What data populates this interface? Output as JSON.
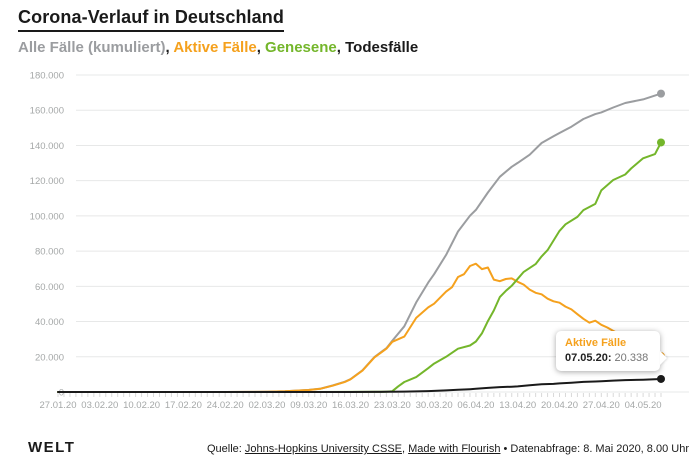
{
  "header": {
    "title": "Corona-Verlauf in Deutschland",
    "separator": ", ",
    "separator_color": "#1a1a1a",
    "legend": [
      {
        "label": "Alle Fälle (kumuliert)",
        "color": "#9b9da0"
      },
      {
        "label": "Aktive Fälle",
        "color": "#f5a11d"
      },
      {
        "label": "Genesene",
        "color": "#74b62b"
      },
      {
        "label": "Todesfälle",
        "color": "#1a1a1a"
      }
    ]
  },
  "tooltip": {
    "series": "Aktive Fälle",
    "color": "#f5a11d",
    "date_label": "07.05.20:",
    "value": "20.338"
  },
  "footer": {
    "brand": "WELT",
    "source_prefix": "Quelle: ",
    "link1": "Johns-Hopkins University CSSE",
    "sep1": ", ",
    "link2": "Made with Flourish",
    "suffix": " • Datenabfrage: 8. Mai 2020, 8.00 Uhr"
  },
  "chart_data": {
    "type": "line",
    "title": "Corona-Verlauf in Deutschland",
    "xlabel": "",
    "ylabel": "",
    "ylim": [
      0,
      180000
    ],
    "grid": "horizontal",
    "grid_color": "#e7e8e8",
    "tick_color": "#d9d9d9",
    "axis_label_color": "#a5a8a8",
    "legend_position": "top-subtitle",
    "end_dots": true,
    "x_days_total": 101,
    "x_tick_days": [
      0,
      7,
      14,
      21,
      28,
      35,
      42,
      49,
      56,
      63,
      70,
      77,
      84,
      91,
      98
    ],
    "x_tick_labels": [
      "27.01.20",
      "03.02.20",
      "10.02.20",
      "17.02.20",
      "24.02.20",
      "02.03.20",
      "09.03.20",
      "16.03.20",
      "23.03.20",
      "30.03.20",
      "06.04.20",
      "13.04.20",
      "20.04.20",
      "27.04.20",
      "04.05.20"
    ],
    "y_ticks": [
      {
        "v": 0,
        "label": "0"
      },
      {
        "v": 20000,
        "label": "20.000"
      },
      {
        "v": 40000,
        "label": "40.000"
      },
      {
        "v": 60000,
        "label": "60.000"
      },
      {
        "v": 80000,
        "label": "80.000"
      },
      {
        "v": 100000,
        "label": "100.000"
      },
      {
        "v": 120000,
        "label": "120.000"
      },
      {
        "v": 140000,
        "label": "140.000"
      },
      {
        "v": 160000,
        "label": "160.000"
      },
      {
        "v": 180000,
        "label": "180.000"
      }
    ],
    "series": [
      {
        "name": "Alle Fälle (kumuliert)",
        "color": "#9b9da0",
        "points": [
          [
            0,
            1
          ],
          [
            7,
            12
          ],
          [
            14,
            14
          ],
          [
            21,
            16
          ],
          [
            28,
            16
          ],
          [
            32,
            48
          ],
          [
            35,
            159
          ],
          [
            38,
            482
          ],
          [
            40,
            799
          ],
          [
            42,
            1176
          ],
          [
            44,
            1908
          ],
          [
            46,
            3675
          ],
          [
            48,
            5795
          ],
          [
            49,
            7272
          ],
          [
            51,
            12327
          ],
          [
            53,
            19848
          ],
          [
            55,
            24873
          ],
          [
            56,
            29056
          ],
          [
            58,
            37323
          ],
          [
            60,
            50871
          ],
          [
            62,
            62095
          ],
          [
            63,
            66885
          ],
          [
            65,
            77872
          ],
          [
            67,
            91159
          ],
          [
            69,
            100123
          ],
          [
            70,
            103374
          ],
          [
            72,
            113296
          ],
          [
            74,
            122171
          ],
          [
            76,
            127854
          ],
          [
            77,
            130072
          ],
          [
            79,
            134753
          ],
          [
            81,
            141397
          ],
          [
            83,
            145184
          ],
          [
            84,
            147065
          ],
          [
            86,
            150648
          ],
          [
            88,
            154999
          ],
          [
            90,
            157770
          ],
          [
            91,
            158758
          ],
          [
            93,
            161539
          ],
          [
            95,
            164077
          ],
          [
            98,
            166152
          ],
          [
            101,
            169430
          ]
        ]
      },
      {
        "name": "Aktive Fälle",
        "color": "#f5a11d",
        "points": [
          [
            0,
            1
          ],
          [
            7,
            12
          ],
          [
            14,
            14
          ],
          [
            21,
            16
          ],
          [
            28,
            16
          ],
          [
            32,
            46
          ],
          [
            35,
            150
          ],
          [
            38,
            460
          ],
          [
            40,
            770
          ],
          [
            42,
            1130
          ],
          [
            44,
            1850
          ],
          [
            46,
            3580
          ],
          [
            48,
            5640
          ],
          [
            49,
            7190
          ],
          [
            51,
            12150
          ],
          [
            53,
            19650
          ],
          [
            55,
            24600
          ],
          [
            56,
            28480
          ],
          [
            58,
            31440
          ],
          [
            60,
            42050
          ],
          [
            62,
            48060
          ],
          [
            63,
            50140
          ],
          [
            65,
            56990
          ],
          [
            66,
            59500
          ],
          [
            67,
            65310
          ],
          [
            68,
            66900
          ],
          [
            69,
            71550
          ],
          [
            70,
            72860
          ],
          [
            71,
            69800
          ],
          [
            72,
            70670
          ],
          [
            73,
            63800
          ],
          [
            74,
            62890
          ],
          [
            75,
            64150
          ],
          [
            76,
            64530
          ],
          [
            77,
            62580
          ],
          [
            78,
            61000
          ],
          [
            79,
            58150
          ],
          [
            80,
            56300
          ],
          [
            81,
            55500
          ],
          [
            82,
            53000
          ],
          [
            83,
            51500
          ],
          [
            84,
            50700
          ],
          [
            85,
            48500
          ],
          [
            86,
            46900
          ],
          [
            87,
            44200
          ],
          [
            88,
            41570
          ],
          [
            89,
            39350
          ],
          [
            90,
            40500
          ],
          [
            91,
            38130
          ],
          [
            92,
            36600
          ],
          [
            93,
            34670
          ],
          [
            94,
            33000
          ],
          [
            95,
            30600
          ],
          [
            96,
            29100
          ],
          [
            97,
            27700
          ],
          [
            98,
            26460
          ],
          [
            99,
            24640
          ],
          [
            100,
            22600
          ],
          [
            101,
            20338
          ]
        ]
      },
      {
        "name": "Genesene",
        "color": "#74b62b",
        "points": [
          [
            0,
            0
          ],
          [
            42,
            25
          ],
          [
            49,
            67
          ],
          [
            55,
            180
          ],
          [
            56,
            453
          ],
          [
            57,
            3243
          ],
          [
            58,
            5673
          ],
          [
            60,
            8481
          ],
          [
            62,
            13500
          ],
          [
            63,
            16100
          ],
          [
            65,
            19960
          ],
          [
            67,
            24575
          ],
          [
            69,
            26400
          ],
          [
            70,
            28700
          ],
          [
            71,
            33300
          ],
          [
            72,
            40280
          ],
          [
            73,
            46300
          ],
          [
            74,
            53913
          ],
          [
            75,
            57400
          ],
          [
            76,
            60300
          ],
          [
            77,
            64300
          ],
          [
            78,
            68200
          ],
          [
            80,
            72600
          ],
          [
            81,
            77000
          ],
          [
            82,
            80600
          ],
          [
            84,
            91500
          ],
          [
            85,
            95200
          ],
          [
            87,
            99400
          ],
          [
            88,
            103300
          ],
          [
            90,
            106800
          ],
          [
            91,
            114500
          ],
          [
            93,
            120400
          ],
          [
            95,
            123500
          ],
          [
            96,
            126900
          ],
          [
            98,
            132700
          ],
          [
            100,
            135100
          ],
          [
            101,
            141700
          ]
        ]
      },
      {
        "name": "Todesfälle",
        "color": "#1a1a1a",
        "points": [
          [
            0,
            0
          ],
          [
            42,
            2
          ],
          [
            46,
            8
          ],
          [
            49,
            17
          ],
          [
            53,
            44
          ],
          [
            55,
            94
          ],
          [
            56,
            123
          ],
          [
            58,
            206
          ],
          [
            60,
            342
          ],
          [
            62,
            533
          ],
          [
            63,
            645
          ],
          [
            65,
            920
          ],
          [
            67,
            1275
          ],
          [
            69,
            1584
          ],
          [
            70,
            1810
          ],
          [
            72,
            2349
          ],
          [
            74,
            2767
          ],
          [
            76,
            3022
          ],
          [
            77,
            3194
          ],
          [
            79,
            3804
          ],
          [
            81,
            4352
          ],
          [
            83,
            4586
          ],
          [
            84,
            4862
          ],
          [
            86,
            5279
          ],
          [
            88,
            5760
          ],
          [
            90,
            5976
          ],
          [
            91,
            6126
          ],
          [
            93,
            6467
          ],
          [
            95,
            6736
          ],
          [
            98,
            6993
          ],
          [
            101,
            7392
          ]
        ]
      }
    ]
  }
}
